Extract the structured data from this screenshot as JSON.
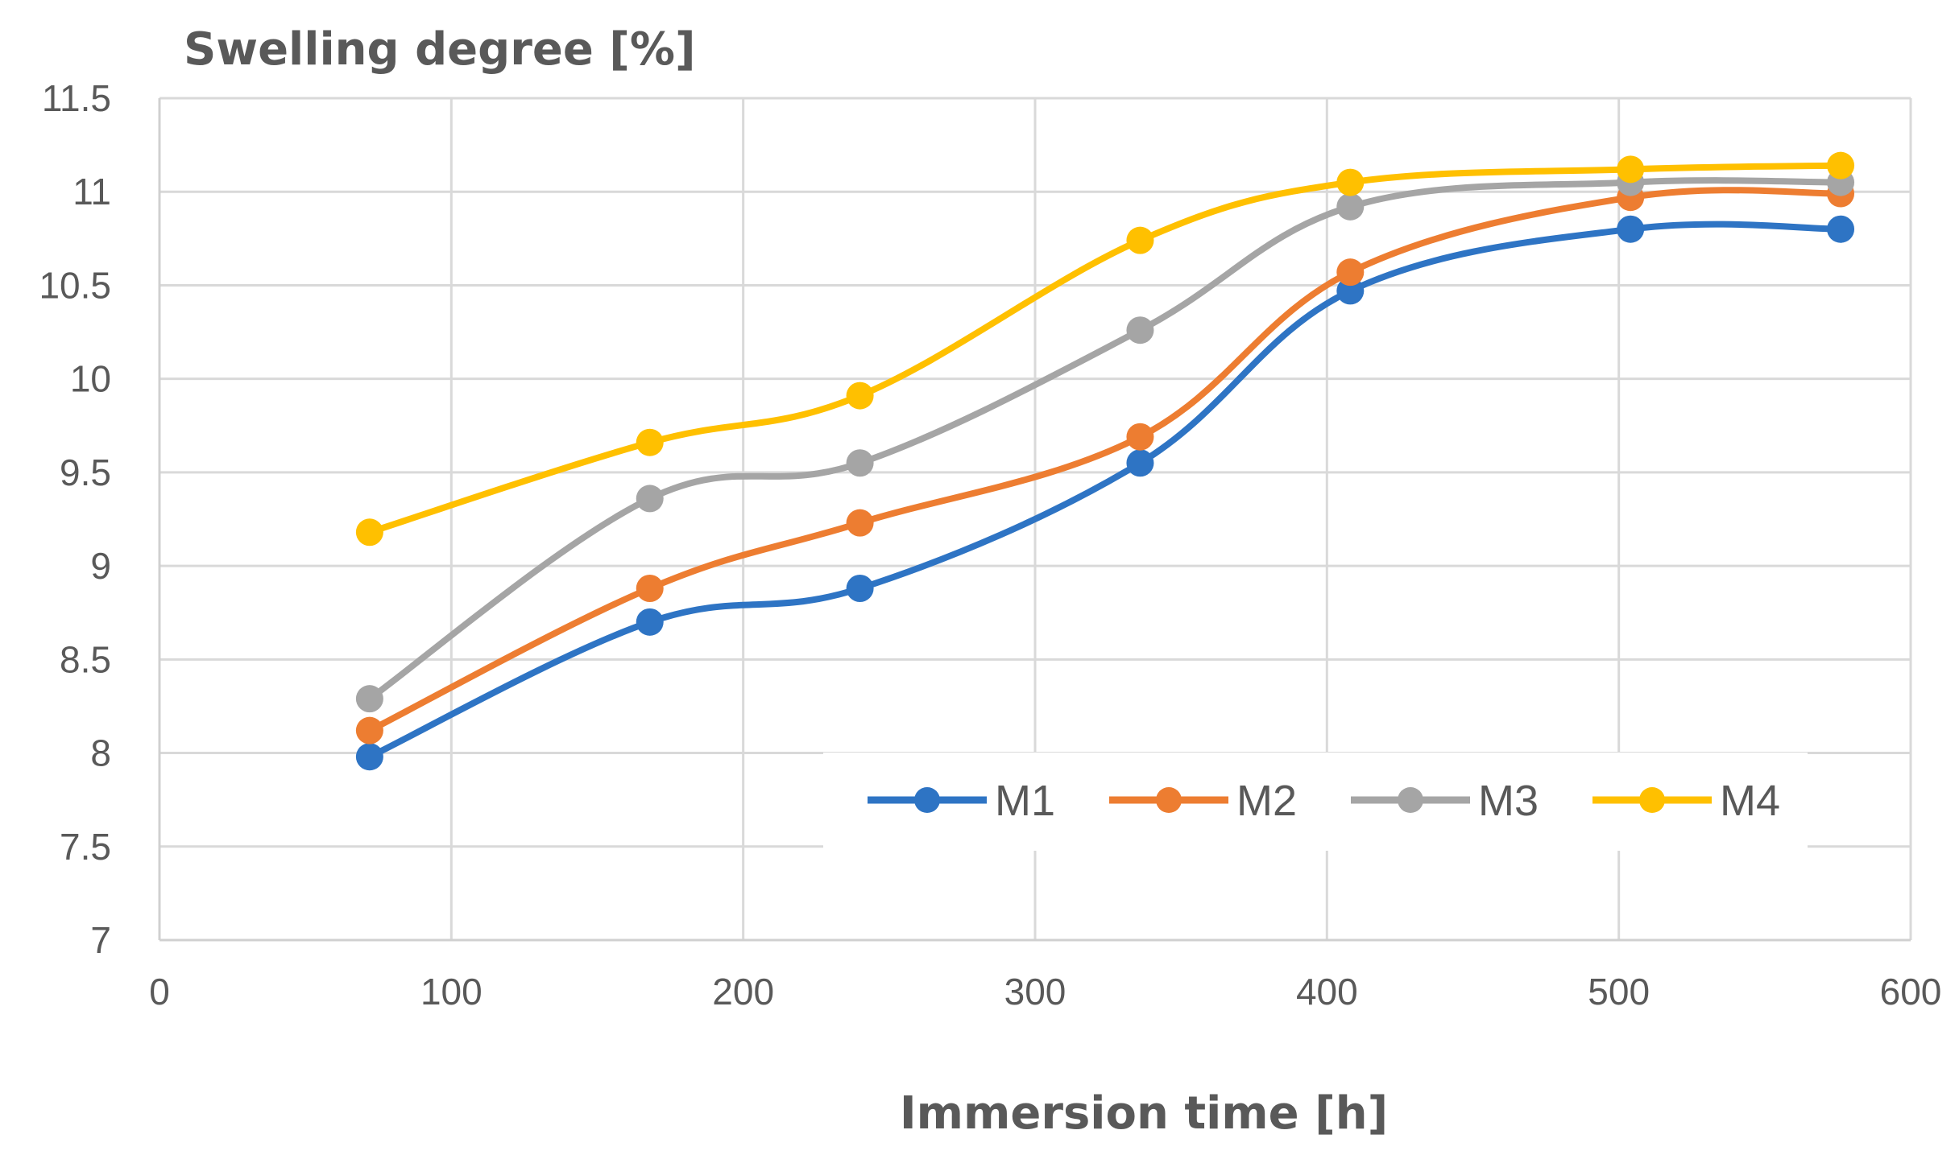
{
  "chart_data": {
    "type": "line",
    "title": "",
    "ylabel": "Swelling degree [%]",
    "xlabel": "Immersion time [h]",
    "xlim": [
      0,
      600
    ],
    "ylim": [
      7,
      11.5
    ],
    "x_ticks": [
      0,
      100,
      200,
      300,
      400,
      500,
      600
    ],
    "y_ticks": [
      7,
      7.5,
      8,
      8.5,
      9,
      9.5,
      10,
      10.5,
      11,
      11.5
    ],
    "grid": true,
    "smooth": true,
    "legend_position": "bottom-right",
    "series": [
      {
        "name": "M1",
        "color": "#2E74C4",
        "x": [
          72,
          168,
          240,
          336,
          408,
          504,
          576
        ],
        "values": [
          7.98,
          8.7,
          8.88,
          9.55,
          10.47,
          10.8,
          10.8
        ]
      },
      {
        "name": "M2",
        "color": "#ED7D31",
        "x": [
          72,
          168,
          240,
          336,
          408,
          504,
          576
        ],
        "values": [
          8.12,
          8.88,
          9.23,
          9.69,
          10.57,
          10.97,
          10.99
        ]
      },
      {
        "name": "M3",
        "color": "#A5A5A5",
        "x": [
          72,
          168,
          240,
          336,
          408,
          504,
          576
        ],
        "values": [
          8.29,
          9.36,
          9.55,
          10.26,
          10.92,
          11.05,
          11.05
        ]
      },
      {
        "name": "M4",
        "color": "#FFC000",
        "x": [
          72,
          168,
          240,
          336,
          408,
          504,
          576
        ],
        "values": [
          9.18,
          9.66,
          9.91,
          10.74,
          11.05,
          11.12,
          11.14
        ]
      }
    ]
  }
}
